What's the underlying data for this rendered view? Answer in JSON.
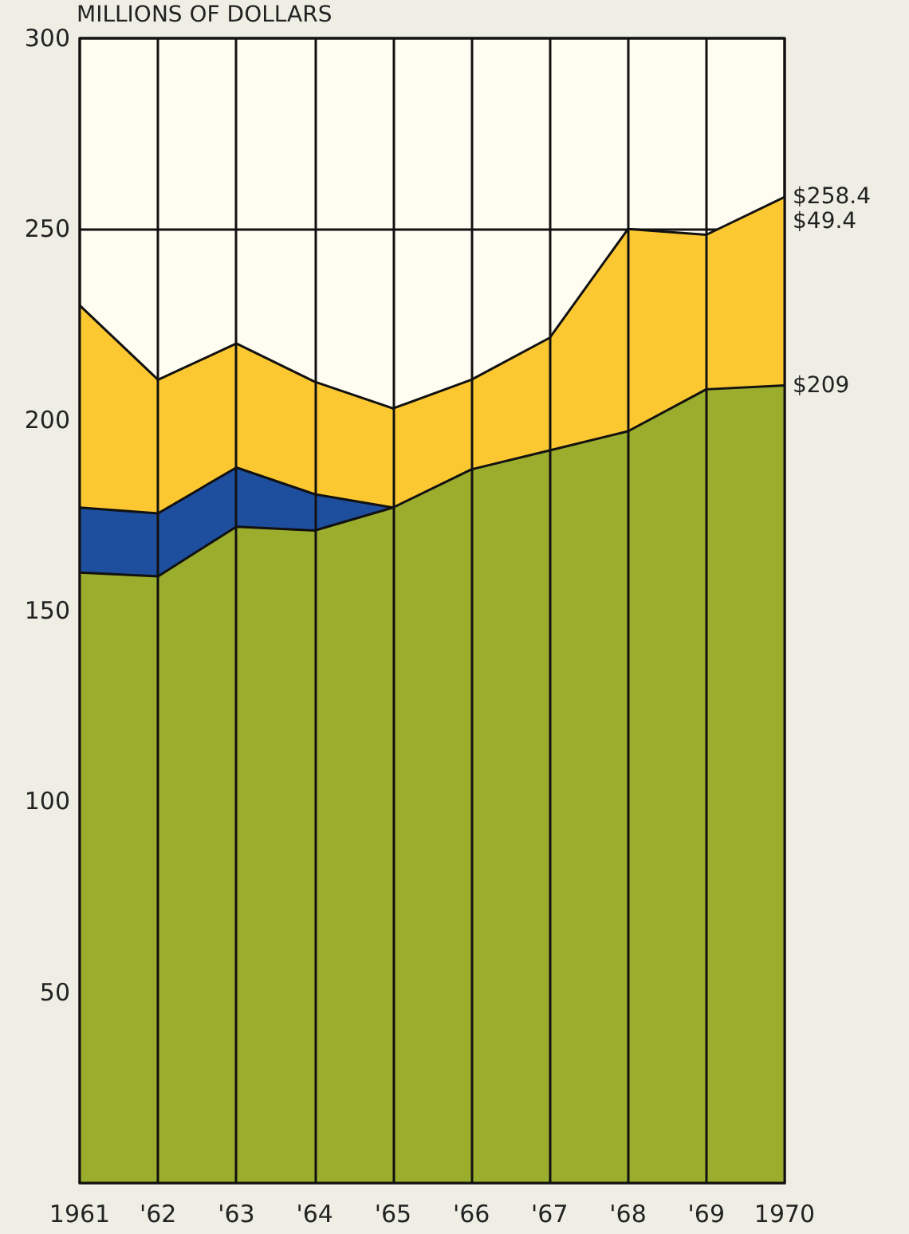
{
  "chart_data": {
    "type": "area",
    "ylabel": "MILLIONS OF DOLLARS",
    "categories": [
      "1961",
      "'62",
      "'63",
      "'64",
      "'65",
      "'66",
      "'67",
      "'68",
      "'69",
      "1970"
    ],
    "stacked": true,
    "ylim": [
      0,
      300
    ],
    "yticks": [
      50,
      100,
      150,
      200,
      250,
      300
    ],
    "grid": true,
    "marker": "none",
    "series": [
      {
        "color": "#9bad2d",
        "values": [
          160,
          159,
          172,
          171,
          177,
          187,
          192,
          197,
          208,
          209
        ]
      },
      {
        "color": "#1e4f9e",
        "values": [
          17,
          16.5,
          15.5,
          9.5,
          0,
          null,
          null,
          null,
          null,
          null
        ]
      },
      {
        "color": "#fcc832",
        "values": [
          53,
          35,
          32.5,
          29.5,
          26,
          23.5,
          29.5,
          53,
          40.5,
          49.4
        ]
      }
    ],
    "annotations": [
      {
        "text": "$258.4",
        "x": "1970",
        "y": 258.4
      },
      {
        "text": "$49.4",
        "x": "1970",
        "y": 252
      },
      {
        "text": "$209",
        "x": "1970",
        "y": 209
      }
    ]
  }
}
